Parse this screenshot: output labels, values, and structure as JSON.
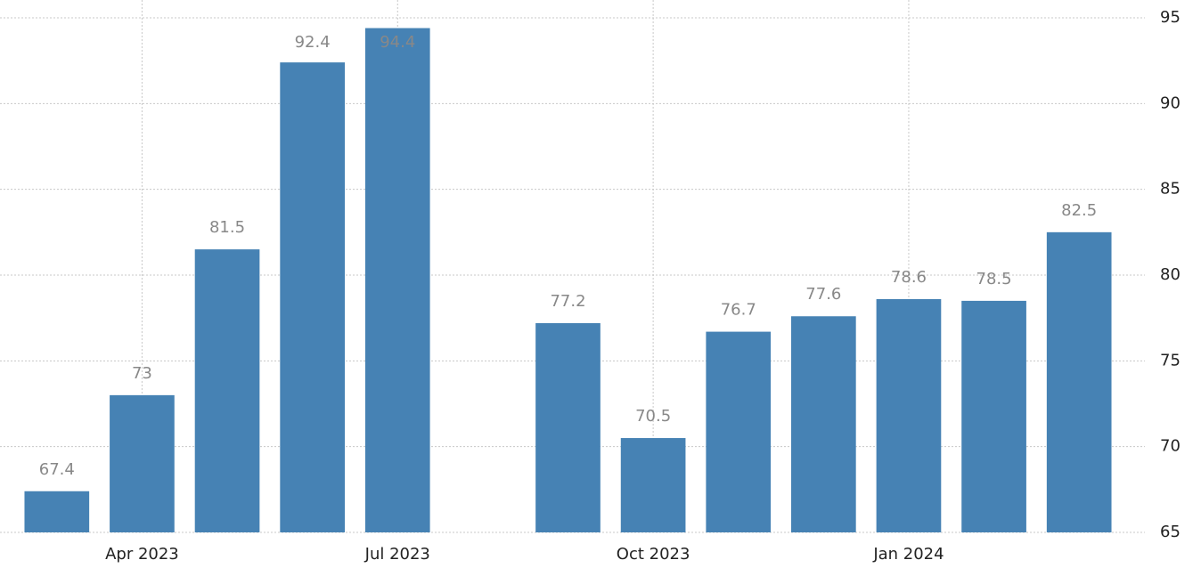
{
  "chart_data": {
    "type": "bar",
    "categories": [
      null,
      "Apr 2023",
      null,
      null,
      "Jul 2023",
      null,
      null,
      "Oct 2023",
      null,
      null,
      "Jan 2024",
      null,
      null
    ],
    "values": [
      67.4,
      73,
      81.5,
      92.4,
      94.4,
      null,
      77.2,
      70.5,
      76.7,
      77.6,
      78.6,
      78.5,
      82.5
    ],
    "color": "#4682b4",
    "ylim": [
      65,
      95
    ],
    "yticks": [
      65,
      70,
      75,
      80,
      85,
      90,
      95
    ],
    "grid": true
  }
}
